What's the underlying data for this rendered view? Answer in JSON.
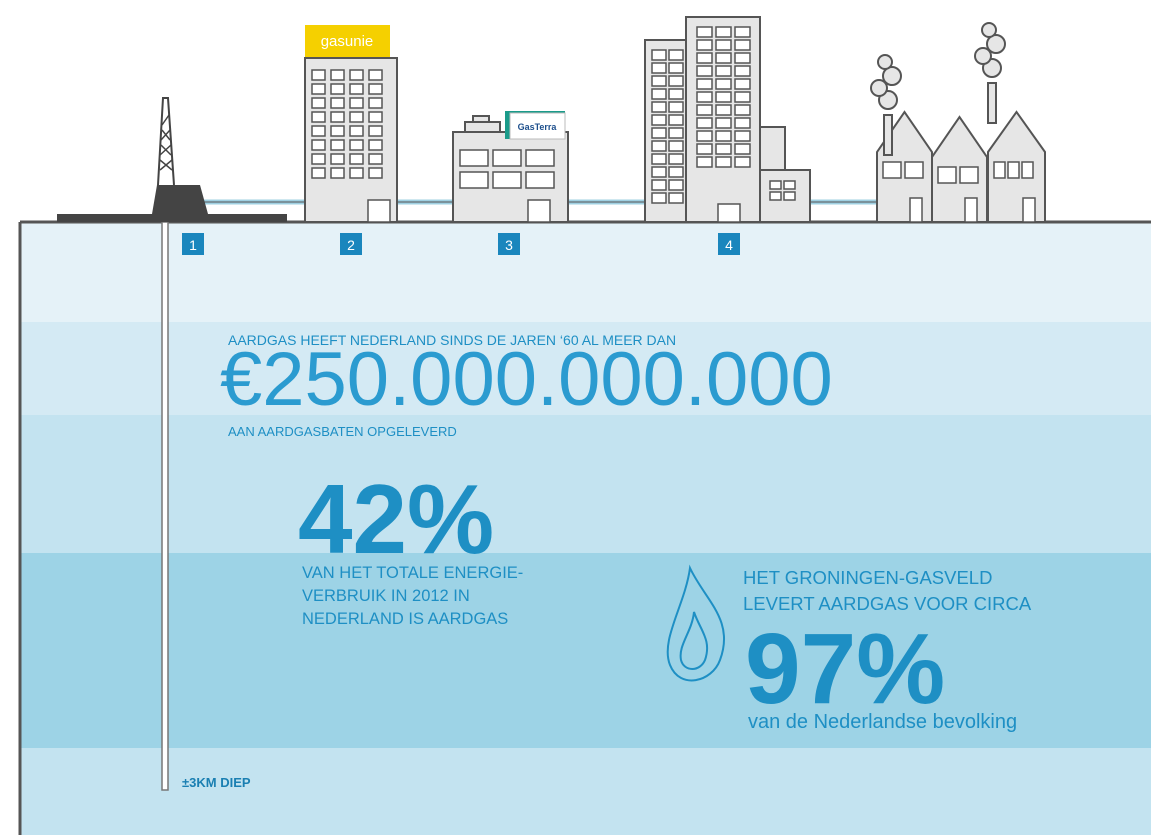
{
  "logos": {
    "gasunie": "gasunie",
    "gasterra": "GasTerra"
  },
  "markers": [
    "1",
    "2",
    "3",
    "4"
  ],
  "revenue": {
    "intro": "AARDGAS HEEFT NEDERLAND SINDS DE JAREN ‘60 AL MEER DAN",
    "amount": "€250.000.000.000",
    "outro": "AAN AARDGASBATEN OPGELEVERD"
  },
  "energy_share": {
    "figure": "42%",
    "lines": [
      "VAN HET TOTALE ENERGIE-",
      "VERBRUIK IN 2012 IN",
      "NEDERLAND IS AARDGAS"
    ]
  },
  "groningen": {
    "lines": [
      "HET GRONINGEN-GASVELD",
      "LEVERT AARDGAS VOOR CIRCA"
    ],
    "figure": "97%",
    "outro": "van de Nederlandse bevolking"
  },
  "depth": "±3KM DIEP"
}
